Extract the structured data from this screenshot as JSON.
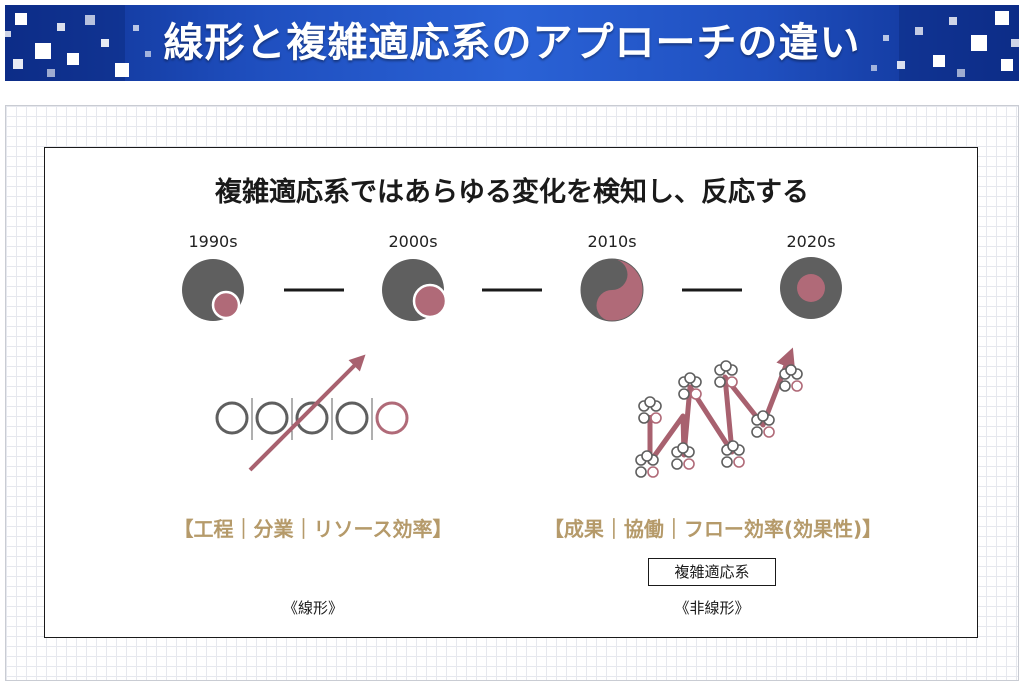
{
  "header": {
    "title": "線形と複雑適応系のアプローチの違い",
    "colors": {
      "banner_dark": "#0d2f8f",
      "banner_light": "#2a62d6"
    }
  },
  "diagram": {
    "title": "複雑適応系ではあらゆる変化を検知し、反応する",
    "eras": [
      "1990s",
      "2000s",
      "2010s",
      "2020s"
    ],
    "linear": {
      "caption": "【工程｜分業｜リソース効率】",
      "label": "《線形》"
    },
    "nonlinear": {
      "caption": "【成果｜協働｜フロー効率(効果性)】",
      "box_label": "複雑適応系",
      "label": "《非線形》"
    },
    "colors": {
      "dark_gray": "#5f5f5f",
      "rose": "#b06a78",
      "gold": "#b59a6a",
      "ink": "#1a1a1a"
    }
  }
}
